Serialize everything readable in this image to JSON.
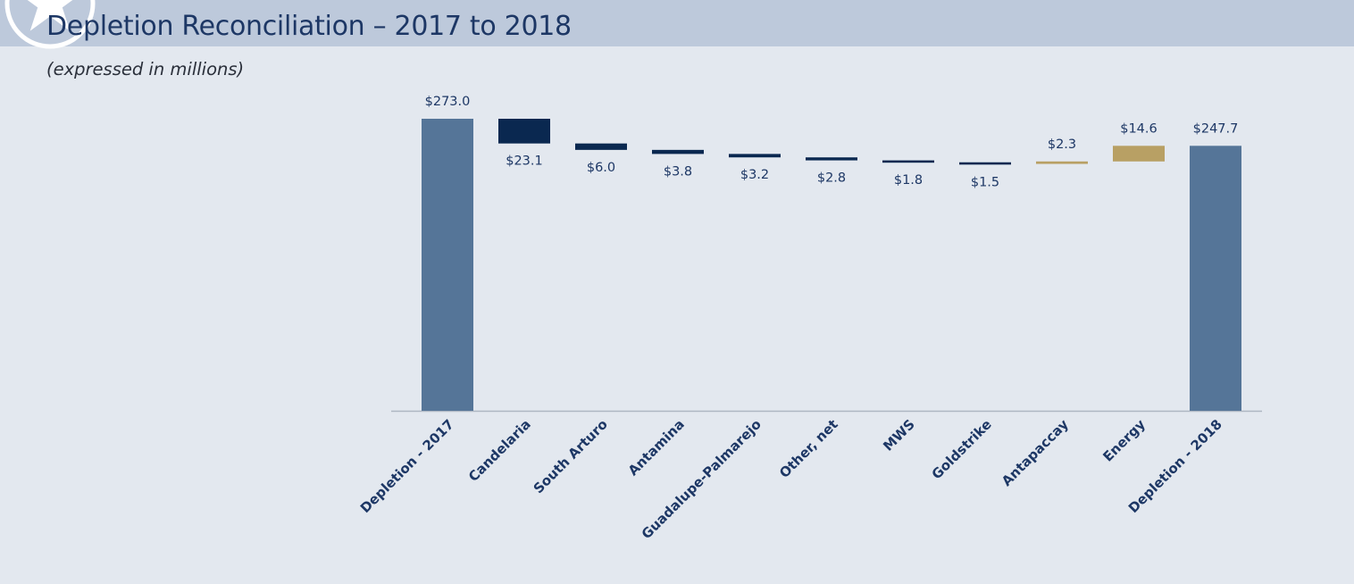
{
  "page": {
    "title": "Depletion Reconciliation – 2017 to 2018",
    "subtitle": "(expressed in millions)"
  },
  "colors": {
    "background": "#e3e8ef",
    "header_band": "#bdc9db",
    "total": "#557598",
    "decrease": "#0a2850",
    "increase": "#b8a064",
    "label": "#1d3765",
    "axis": "#aeb6c2"
  },
  "chart_data": {
    "type": "waterfall",
    "title": "",
    "xlabel": "",
    "ylabel": "",
    "ylim": [
      0,
      275.5
    ],
    "grid": false,
    "legend": "none",
    "categories": [
      "Depletion - 2017",
      "Candelaria",
      "South Arturo",
      "Antamina",
      "Guadalupe-Palmarejo",
      "Other, net",
      "MWS",
      "Goldstrike",
      "Antapaccay",
      "Energy",
      "Depletion - 2018"
    ],
    "values": [
      273.0,
      -23.1,
      -6.0,
      -3.8,
      -3.2,
      -2.8,
      -1.8,
      -1.5,
      2.3,
      14.6,
      247.7
    ],
    "kinds": [
      "total",
      "decrease",
      "decrease",
      "decrease",
      "decrease",
      "decrease",
      "decrease",
      "decrease",
      "increase",
      "increase",
      "total"
    ],
    "labels": [
      "$273.0",
      "$23.1",
      "$6.0",
      "$3.8",
      "$3.2",
      "$2.8",
      "$1.8",
      "$1.5",
      "$2.3",
      "$14.6",
      "$247.7"
    ]
  }
}
